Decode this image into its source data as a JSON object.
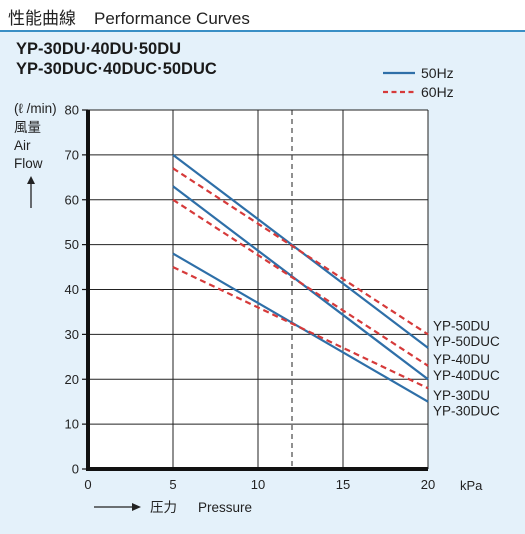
{
  "header": {
    "title_jp": "性能曲線",
    "title_en": "Performance Curves"
  },
  "models": {
    "line1": "YP-30DU·40DU·50DU",
    "line2": "YP-30DUC·40DUC·50DUC"
  },
  "chart_data": {
    "type": "line",
    "ylabel_unit": "(ℓ /min)",
    "ylabel_jp": "風量",
    "ylabel_en_1": "Air",
    "ylabel_en_2": "Flow",
    "xlabel_jp": "圧力",
    "xlabel_en": "Pressure",
    "x_unit": "kPa",
    "xlim": [
      0,
      20
    ],
    "ylim": [
      0,
      80
    ],
    "x_ticks": [
      "0",
      "5",
      "10",
      "15",
      "20"
    ],
    "y_ticks": [
      "0",
      "10",
      "20",
      "30",
      "40",
      "50",
      "60",
      "70",
      "80"
    ],
    "grid": true,
    "reference_line_x": 12,
    "legend": {
      "position": "top-right",
      "items": [
        {
          "label": "50Hz",
          "style": "solid",
          "color": "#2e6fa8"
        },
        {
          "label": "60Hz",
          "style": "dashed",
          "color": "#d63a3a"
        }
      ]
    },
    "series": [
      {
        "freq": "50Hz",
        "points": [
          [
            5,
            70
          ],
          [
            20,
            27
          ]
        ]
      },
      {
        "freq": "60Hz",
        "points": [
          [
            5,
            67
          ],
          [
            20,
            30
          ]
        ]
      },
      {
        "freq": "50Hz",
        "points": [
          [
            5,
            63
          ],
          [
            20,
            20
          ]
        ]
      },
      {
        "freq": "60Hz",
        "points": [
          [
            5,
            60
          ],
          [
            20,
            23
          ]
        ]
      },
      {
        "freq": "50Hz",
        "points": [
          [
            5,
            48
          ],
          [
            20,
            15
          ]
        ]
      },
      {
        "freq": "60Hz",
        "points": [
          [
            5,
            45
          ],
          [
            20,
            18
          ]
        ]
      }
    ],
    "end_labels": [
      {
        "text": "YP-50DU",
        "y": 32
      },
      {
        "text": "YP-50DUC",
        "y": 28.5
      },
      {
        "text": "YP-40DU",
        "y": 24.5
      },
      {
        "text": "YP-40DUC",
        "y": 21
      },
      {
        "text": "YP-30DU",
        "y": 16.5
      },
      {
        "text": "YP-30DUC",
        "y": 13
      }
    ]
  }
}
